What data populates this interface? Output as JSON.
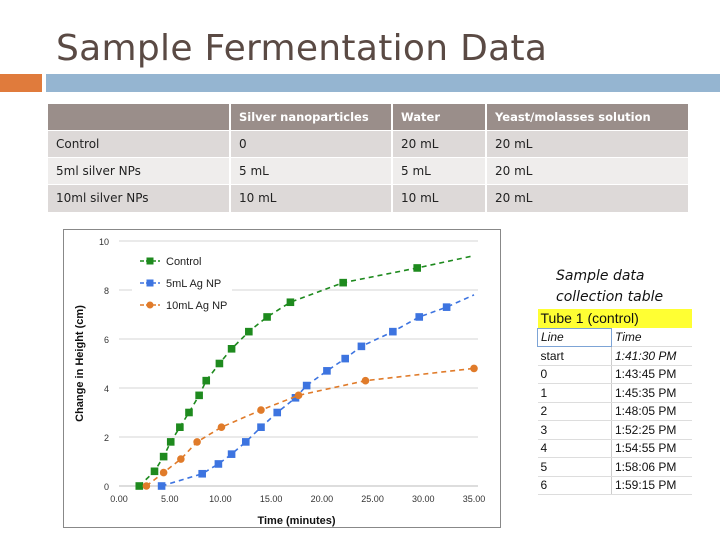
{
  "slide": {
    "title": "Sample Fermentation Data",
    "accent_colors": {
      "orange": "#e07b3c",
      "blue": "#95b5d1",
      "title": "#5a4a44"
    }
  },
  "recipe_table": {
    "headers": [
      "",
      "Silver nanoparticles",
      "Water",
      "Yeast/molasses solution"
    ],
    "rows": [
      [
        "Control",
        "0",
        "20 mL",
        "20 mL"
      ],
      [
        "5ml silver NPs",
        "5 mL",
        "5 mL",
        "20 mL"
      ],
      [
        "10ml silver NPs",
        "10 mL",
        "10 mL",
        "20 mL"
      ]
    ]
  },
  "side_table": {
    "caption_line1": "Sample data",
    "caption_line2": "collection table",
    "title": "Tube 1 (control)",
    "columns": [
      "Line",
      "Time"
    ],
    "rows": [
      [
        "start",
        "1:41:30 PM"
      ],
      [
        "0",
        "1:43:45 PM"
      ],
      [
        "1",
        "1:45:35 PM"
      ],
      [
        "2",
        "1:48:05 PM"
      ],
      [
        "3",
        "1:52:25 PM"
      ],
      [
        "4",
        "1:54:55 PM"
      ],
      [
        "5",
        "1:58:06 PM"
      ],
      [
        "6",
        "1:59:15 PM"
      ]
    ]
  },
  "chart_data": {
    "type": "scatter",
    "title": "",
    "xlabel": "Time (minutes)",
    "ylabel": "Change in Height (cm)",
    "xlim": [
      0,
      35
    ],
    "ylim": [
      0,
      10
    ],
    "x_ticks": [
      "0.00",
      "5.00",
      "10.00",
      "15.00",
      "20.00",
      "25.00",
      "30.00",
      "35.00"
    ],
    "y_ticks": [
      "0",
      "2",
      "4",
      "6",
      "8",
      "10"
    ],
    "grid": "horizontal",
    "legend_position": "upper-left",
    "series": [
      {
        "name": "Control",
        "color": "#1e8a1e",
        "marker": "square",
        "line": "dashed trendline",
        "x": [
          2.0,
          3.5,
          4.4,
          5.1,
          6.0,
          6.9,
          7.9,
          8.6,
          9.9,
          11.1,
          12.8,
          14.6,
          16.9,
          22.1,
          29.4
        ],
        "y": [
          0,
          0.6,
          1.2,
          1.8,
          2.4,
          3.0,
          3.7,
          4.3,
          5.0,
          5.6,
          6.3,
          6.9,
          7.5,
          8.3,
          8.9
        ],
        "trend_end": [
          35.0,
          9.4
        ]
      },
      {
        "name": "5mL Ag NP",
        "color": "#3d74e0",
        "marker": "square",
        "line": "dashed trendline",
        "x": [
          4.2,
          8.2,
          9.8,
          11.1,
          12.5,
          14.0,
          15.6,
          17.4,
          18.5,
          20.5,
          22.3,
          23.9,
          27.0,
          29.6,
          32.3
        ],
        "y": [
          0,
          0.5,
          0.9,
          1.3,
          1.8,
          2.4,
          3.0,
          3.6,
          4.1,
          4.7,
          5.2,
          5.7,
          6.3,
          6.9,
          7.3
        ],
        "trend_end": [
          35.0,
          7.8
        ]
      },
      {
        "name": "10mL Ag NP",
        "color": "#e07b2a",
        "marker": "circle",
        "line": "dashed trendline",
        "x": [
          2.7,
          4.4,
          6.1,
          7.7,
          10.1,
          14.0,
          17.7,
          24.3,
          35.0
        ],
        "y": [
          0,
          0.55,
          1.1,
          1.8,
          2.4,
          3.1,
          3.7,
          4.3,
          4.8
        ],
        "trend_end": [
          35.0,
          4.8
        ]
      }
    ]
  }
}
